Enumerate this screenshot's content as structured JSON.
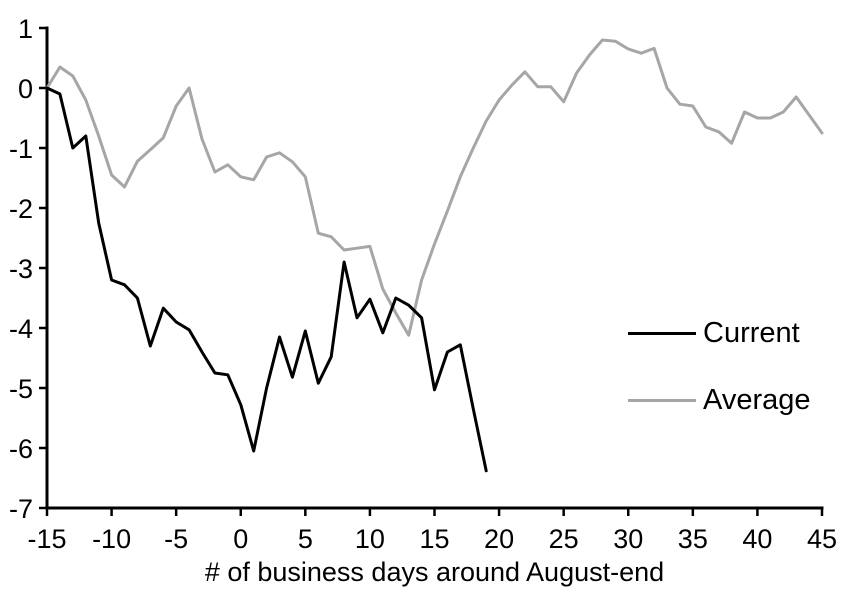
{
  "chart_data": {
    "type": "line",
    "title": "",
    "xlabel": "# of business days around August-end",
    "ylabel": "",
    "xlim": [
      -15,
      45
    ],
    "ylim": [
      -7,
      1
    ],
    "x_ticks": [
      -15,
      -10,
      -5,
      0,
      5,
      10,
      15,
      20,
      25,
      30,
      35,
      40,
      45
    ],
    "y_ticks": [
      1,
      0,
      -1,
      -2,
      -3,
      -4,
      -5,
      -6,
      -7
    ],
    "grid": false,
    "axis_color": "#000000",
    "legend_position": "right-middle",
    "x_start": -15,
    "x_step": 1,
    "series": [
      {
        "name": "Average",
        "color": "#a6a6a6",
        "values": [
          0,
          0.35,
          0.2,
          -0.2,
          -0.8,
          -1.45,
          -1.65,
          -1.22,
          -1.03,
          -0.83,
          -0.3,
          0.0,
          -0.85,
          -1.4,
          -1.28,
          -1.48,
          -1.53,
          -1.15,
          -1.08,
          -1.23,
          -1.48,
          -2.42,
          -2.48,
          -2.7,
          -2.67,
          -2.64,
          -3.35,
          -3.75,
          -4.12,
          -3.2,
          -2.6,
          -2.05,
          -1.48,
          -1.0,
          -0.55,
          -0.2,
          0.05,
          0.27,
          0.02,
          0.02,
          -0.23,
          0.25,
          0.55,
          0.8,
          0.78,
          0.65,
          0.58,
          0.66,
          0.0,
          -0.27,
          -0.3,
          -0.65,
          -0.73,
          -0.92,
          -0.4,
          -0.5,
          -0.5,
          -0.4,
          -0.15,
          -0.45,
          -0.75
        ]
      },
      {
        "name": "Current",
        "color": "#000000",
        "values": [
          0,
          -0.1,
          -1.0,
          -0.8,
          -2.25,
          -3.2,
          -3.28,
          -3.5,
          -4.3,
          -3.67,
          -3.9,
          -4.03,
          -4.4,
          -4.75,
          -4.78,
          -5.28,
          -6.05,
          -5.0,
          -4.15,
          -4.82,
          -4.05,
          -4.92,
          -4.48,
          -2.9,
          -3.83,
          -3.52,
          -4.08,
          -3.5,
          -3.62,
          -3.83,
          -5.03,
          -4.4,
          -4.28,
          -5.35,
          -6.38
        ]
      }
    ],
    "legend": [
      {
        "label": "Current",
        "color": "#000000"
      },
      {
        "label": "Average",
        "color": "#a6a6a6"
      }
    ]
  }
}
